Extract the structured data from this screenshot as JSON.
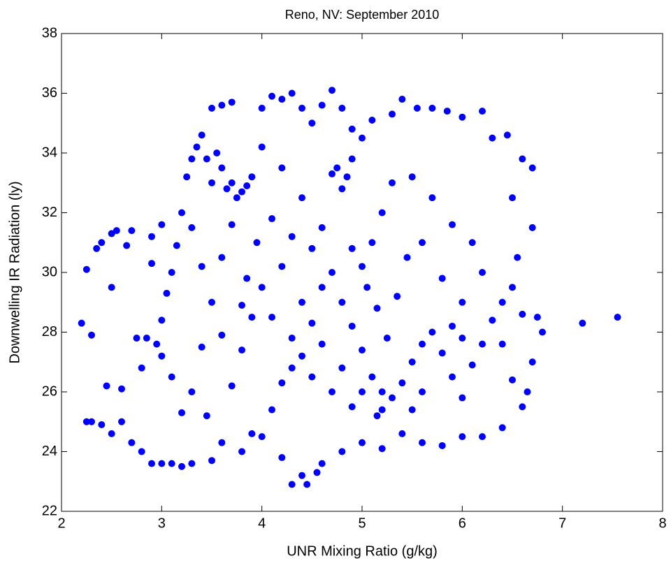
{
  "chart_data": {
    "type": "scatter",
    "title": "Reno, NV: September 2010",
    "x_label": "UNR Mixing Ratio (g/kg)",
    "y_label": "Downwelling IR Radiation (ly)",
    "color": "#0000ff",
    "xlim": [
      2,
      8
    ],
    "xticks": [
      2,
      3,
      4,
      5,
      6,
      7,
      8
    ],
    "ylim": [
      22,
      38
    ],
    "yticks": [
      22,
      24,
      26,
      28,
      30,
      32,
      34,
      36,
      38
    ],
    "x": [
      2.2,
      2.25,
      2.3,
      2.25,
      2.35,
      2.4,
      2.5,
      2.55,
      2.7,
      2.9,
      2.3,
      2.4,
      2.5,
      2.6,
      2.7,
      2.8,
      2.9,
      3.0,
      3.1,
      3.2,
      3.3,
      3.5,
      2.45,
      2.5,
      2.6,
      2.75,
      2.85,
      2.95,
      3.0,
      3.05,
      3.1,
      3.15,
      3.2,
      3.25,
      3.3,
      3.35,
      3.4,
      3.5,
      3.6,
      3.7,
      3.5,
      3.6,
      3.7,
      3.8,
      3.85,
      3.9,
      3.75,
      3.65,
      3.45,
      3.55,
      3.3,
      3.4,
      3.5,
      3.4,
      3.3,
      3.45,
      3.6,
      3.8,
      3.9,
      3.7,
      3.8,
      3.9,
      3.85,
      3.95,
      4.0,
      4.1,
      4.2,
      4.3,
      4.4,
      4.5,
      4.6,
      4.7,
      4.8,
      4.9,
      4.0,
      4.2,
      4.4,
      4.1,
      4.3,
      4.5,
      4.6,
      4.7,
      4.75,
      4.85,
      4.8,
      4.9,
      5.0,
      5.1,
      5.3,
      5.4,
      5.55,
      5.7,
      5.85,
      6.0,
      6.2,
      6.3,
      6.45,
      6.6,
      6.7,
      6.5,
      6.7,
      6.55,
      6.5,
      6.6,
      6.75,
      6.8,
      6.7,
      6.65,
      6.6,
      6.4,
      6.2,
      6.0,
      5.8,
      5.6,
      5.4,
      5.2,
      5.0,
      4.8,
      4.6,
      4.4,
      4.3,
      4.45,
      4.55,
      4.2,
      4.0,
      4.1,
      4.2,
      4.3,
      4.4,
      4.5,
      4.6,
      4.7,
      4.8,
      4.9,
      5.0,
      5.1,
      5.2,
      5.3,
      5.4,
      5.5,
      5.6,
      5.7,
      5.8,
      5.9,
      6.0,
      6.1,
      6.2,
      6.3,
      6.4,
      6.2,
      6.1,
      5.9,
      5.7,
      5.5,
      5.3,
      5.2,
      5.1,
      5.0,
      4.9,
      5.05,
      5.15,
      5.25,
      5.35,
      5.45,
      5.6,
      5.8,
      6.0,
      5.9,
      5.5,
      5.15,
      4.9,
      4.7,
      4.5,
      4.3,
      4.1,
      4.0,
      4.2,
      4.4,
      4.6,
      4.8,
      5.0,
      5.2,
      5.6,
      6.0,
      6.4,
      6.5,
      3.2,
      3.1,
      3.0,
      2.8,
      2.65,
      2.9,
      3.0,
      3.6,
      3.7,
      3.8,
      3.6,
      7.2,
      7.55
    ],
    "values": [
      28.3,
      25.0,
      27.9,
      30.1,
      30.8,
      31.0,
      31.3,
      31.4,
      31.4,
      31.2,
      25.0,
      24.9,
      24.6,
      25.0,
      24.3,
      24.0,
      23.6,
      23.6,
      23.6,
      23.5,
      23.6,
      23.7,
      26.2,
      29.5,
      26.1,
      27.8,
      27.8,
      27.6,
      28.4,
      29.3,
      30.0,
      30.9,
      32.0,
      33.2,
      33.8,
      34.2,
      34.6,
      35.5,
      35.6,
      35.7,
      33.0,
      33.5,
      33.0,
      32.7,
      32.9,
      33.2,
      32.5,
      32.8,
      33.8,
      34.0,
      31.5,
      30.2,
      29.0,
      27.5,
      26.0,
      25.2,
      24.3,
      24.0,
      24.6,
      26.2,
      27.4,
      28.5,
      29.8,
      31.0,
      35.5,
      35.9,
      35.8,
      36.0,
      35.5,
      35.0,
      35.6,
      36.1,
      35.5,
      34.8,
      34.2,
      33.5,
      32.5,
      31.8,
      31.2,
      30.8,
      31.5,
      33.3,
      33.5,
      33.2,
      32.8,
      33.8,
      34.5,
      35.1,
      35.3,
      35.8,
      35.5,
      35.5,
      35.4,
      35.2,
      35.4,
      34.5,
      34.6,
      33.8,
      33.5,
      32.5,
      31.5,
      30.5,
      29.5,
      28.6,
      28.5,
      28.0,
      27.0,
      26.0,
      25.5,
      24.8,
      24.5,
      24.5,
      24.2,
      24.3,
      24.6,
      24.1,
      24.3,
      24.0,
      23.6,
      23.2,
      22.9,
      22.9,
      23.3,
      23.8,
      24.5,
      25.4,
      26.3,
      26.8,
      27.2,
      28.3,
      29.5,
      30.0,
      29.0,
      28.2,
      27.4,
      26.5,
      26.0,
      25.8,
      26.3,
      27.0,
      27.6,
      28.0,
      27.3,
      26.5,
      25.8,
      26.9,
      27.6,
      28.4,
      29.0,
      30.0,
      31.0,
      31.6,
      32.5,
      33.2,
      33.0,
      32.0,
      31.0,
      30.2,
      30.8,
      29.5,
      28.8,
      27.8,
      29.2,
      30.5,
      31.0,
      29.8,
      29.0,
      28.2,
      25.4,
      25.2,
      25.5,
      26.0,
      26.5,
      27.8,
      28.5,
      29.5,
      30.2,
      29.0,
      27.6,
      26.8,
      26.0,
      25.4,
      26.0,
      27.8,
      27.6,
      26.4,
      25.3,
      26.5,
      27.2,
      26.8,
      30.9,
      30.3,
      31.6,
      30.5,
      31.6,
      28.9,
      27.9,
      28.3,
      28.5
    ]
  }
}
